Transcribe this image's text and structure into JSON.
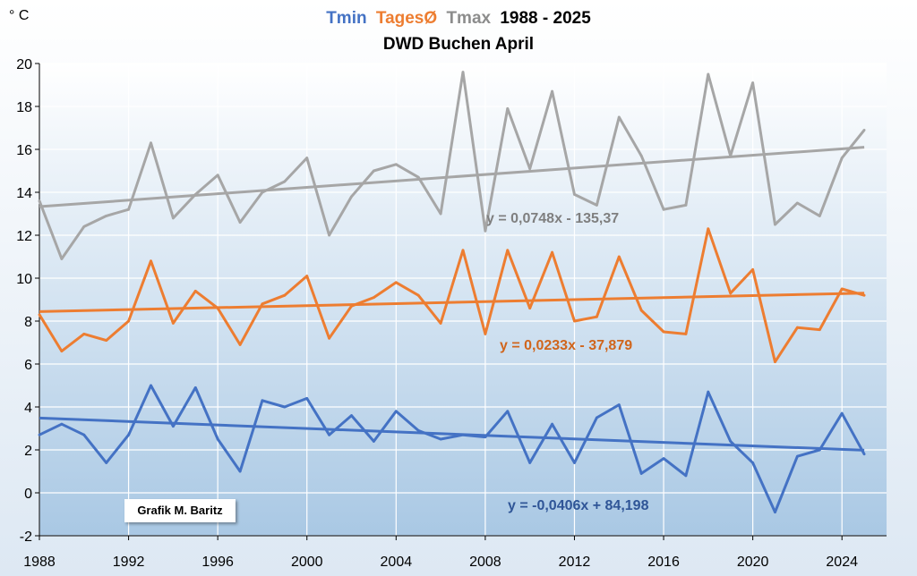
{
  "chart_data": {
    "type": "line",
    "unit_label": "° C",
    "title": {
      "series1": "Tmin",
      "series2": "TagesØ",
      "series3": "Tmax",
      "range": "1988 - 2025",
      "subtitle": "DWD Buchen April"
    },
    "x": [
      1988,
      1989,
      1990,
      1991,
      1992,
      1993,
      1994,
      1995,
      1996,
      1997,
      1998,
      1999,
      2000,
      2001,
      2002,
      2003,
      2004,
      2005,
      2006,
      2007,
      2008,
      2009,
      2010,
      2011,
      2012,
      2013,
      2014,
      2015,
      2016,
      2017,
      2018,
      2019,
      2020,
      2021,
      2022,
      2023,
      2024,
      2025
    ],
    "xlim": [
      1988,
      2026
    ],
    "ylim": [
      -2,
      20
    ],
    "xticks": [
      "1988",
      "1992",
      "1996",
      "2000",
      "2004",
      "2008",
      "2012",
      "2016",
      "2020",
      "2024"
    ],
    "yticks": [
      "-2",
      "0",
      "2",
      "4",
      "6",
      "8",
      "10",
      "12",
      "14",
      "16",
      "18",
      "20"
    ],
    "grid": true,
    "series": [
      {
        "key": "tmax",
        "color": "#a6a6a6",
        "values": [
          13.6,
          10.9,
          12.4,
          12.9,
          13.2,
          16.3,
          12.8,
          13.9,
          14.8,
          12.6,
          14.0,
          14.5,
          15.6,
          12.0,
          13.8,
          15.0,
          15.3,
          14.7,
          13.0,
          19.6,
          12.2,
          17.9,
          15.1,
          18.7,
          13.9,
          13.4,
          17.5,
          15.7,
          13.2,
          13.4,
          19.5,
          15.7,
          19.1,
          12.5,
          13.5,
          12.9,
          15.6,
          16.9
        ],
        "trend": {
          "slope": 0.0748,
          "intercept": -135.37,
          "label": "y = 0,0748x - 135,37"
        }
      },
      {
        "key": "tmean",
        "color": "#ed7d31",
        "values": [
          8.3,
          6.6,
          7.4,
          7.1,
          8.0,
          10.8,
          7.9,
          9.4,
          8.6,
          6.9,
          8.8,
          9.2,
          10.1,
          7.2,
          8.7,
          9.1,
          9.8,
          9.2,
          7.9,
          11.3,
          7.4,
          11.3,
          8.6,
          11.2,
          8.0,
          8.2,
          11.0,
          8.5,
          7.5,
          7.4,
          12.3,
          9.3,
          10.4,
          6.1,
          7.7,
          7.6,
          9.5,
          9.2
        ],
        "trend": {
          "slope": 0.0233,
          "intercept": -37.879,
          "label": "y = 0,0233x - 37,879"
        }
      },
      {
        "key": "tmin",
        "color": "#4472c4",
        "values": [
          2.7,
          3.2,
          2.7,
          1.4,
          2.7,
          5.0,
          3.1,
          4.9,
          2.5,
          1.0,
          4.3,
          4.0,
          4.4,
          2.7,
          3.6,
          2.4,
          3.8,
          2.9,
          2.5,
          2.7,
          2.6,
          3.8,
          1.4,
          3.2,
          1.4,
          3.5,
          4.1,
          0.9,
          1.6,
          0.8,
          4.7,
          2.4,
          1.4,
          -0.9,
          1.7,
          2.0,
          3.7,
          1.8
        ],
        "trend": {
          "slope": -0.0406,
          "intercept": 84.198,
          "label": "y = -0,0406x + 84,198"
        }
      }
    ],
    "credit": "Grafik M. Baritz"
  }
}
